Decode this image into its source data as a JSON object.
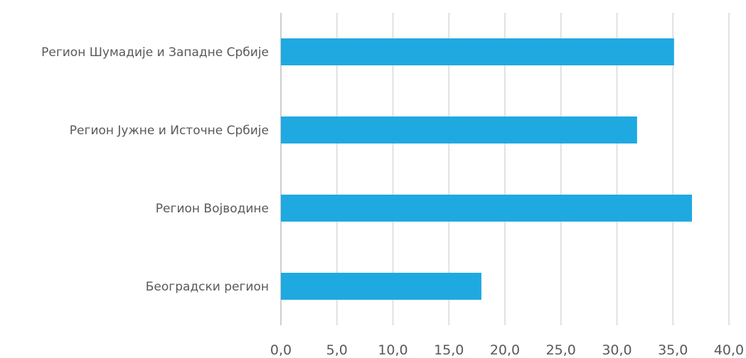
{
  "chart_data": {
    "type": "bar",
    "orientation": "horizontal",
    "title": "",
    "xlabel": "",
    "ylabel": "",
    "categories": [
      "Регион Шумадије и Западне Србије",
      "Регион Јужне и Источне Србије",
      "Регион Војводине",
      "Београдски регион"
    ],
    "values": [
      35.1,
      31.8,
      36.7,
      17.9
    ],
    "xlim": [
      0,
      40
    ],
    "x_ticks": [
      "0,0",
      "5,0",
      "10,0",
      "15,0",
      "20,0",
      "25,0",
      "30,0",
      "35,0",
      "40,0"
    ],
    "x_tick_values": [
      0,
      5,
      10,
      15,
      20,
      25,
      30,
      35,
      40
    ],
    "grid": "vertical",
    "legend": "none",
    "bar_color": "#1fa9e1"
  }
}
